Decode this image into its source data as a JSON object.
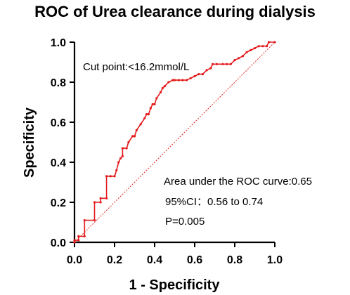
{
  "chart_data": {
    "type": "line",
    "title": "ROC of Urea clearance during dialysis",
    "xlabel": "1 - Specificity",
    "ylabel": "Specificity",
    "xlim": [
      0,
      1
    ],
    "ylim": [
      0,
      1
    ],
    "x_ticks": [
      "0.0",
      "0.2",
      "0.4",
      "0.6",
      "0.8",
      "1.0"
    ],
    "y_ticks": [
      "0.0",
      "0.2",
      "0.4",
      "0.6",
      "0.8",
      "1.0"
    ],
    "grid": false,
    "annotations": {
      "cut_point": "Cut point:<16.2mmol/L",
      "auc": "Area under the ROC curve:0.65",
      "ci": "95%CI：0.56 to 0.74",
      "p_value": "P=0.005"
    },
    "colors": {
      "roc": "#e31a1c",
      "reference": "#e31a1c"
    },
    "series": [
      {
        "x": [
          0.0,
          0.0,
          0.02,
          0.02,
          0.05,
          0.05,
          0.1,
          0.1,
          0.13,
          0.13,
          0.16,
          0.16,
          0.18,
          0.2,
          0.21,
          0.22,
          0.23,
          0.24,
          0.24,
          0.26,
          0.27,
          0.29,
          0.3,
          0.3,
          0.31,
          0.33,
          0.35,
          0.36,
          0.37,
          0.38,
          0.39,
          0.4,
          0.41,
          0.43,
          0.44,
          0.45,
          0.47,
          0.49,
          0.5,
          0.52,
          0.54,
          0.56,
          0.58,
          0.6,
          0.62,
          0.64,
          0.66,
          0.68,
          0.69,
          0.71,
          0.74,
          0.76,
          0.78,
          0.8,
          0.82,
          0.84,
          0.86,
          0.88,
          0.9,
          0.92,
          0.94,
          0.96,
          0.97,
          1.0
        ],
        "y": [
          0.0,
          0.01,
          0.01,
          0.03,
          0.03,
          0.11,
          0.11,
          0.2,
          0.2,
          0.22,
          0.22,
          0.33,
          0.33,
          0.33,
          0.36,
          0.4,
          0.42,
          0.43,
          0.47,
          0.47,
          0.5,
          0.53,
          0.53,
          0.53,
          0.56,
          0.59,
          0.62,
          0.64,
          0.64,
          0.67,
          0.69,
          0.69,
          0.72,
          0.75,
          0.77,
          0.78,
          0.8,
          0.81,
          0.81,
          0.81,
          0.81,
          0.81,
          0.82,
          0.83,
          0.84,
          0.84,
          0.86,
          0.87,
          0.89,
          0.89,
          0.89,
          0.89,
          0.89,
          0.91,
          0.92,
          0.93,
          0.95,
          0.96,
          0.97,
          0.98,
          0.98,
          0.98,
          1.0,
          1.0
        ]
      },
      {
        "x": [
          0,
          1
        ],
        "y": [
          0,
          1
        ]
      }
    ]
  }
}
